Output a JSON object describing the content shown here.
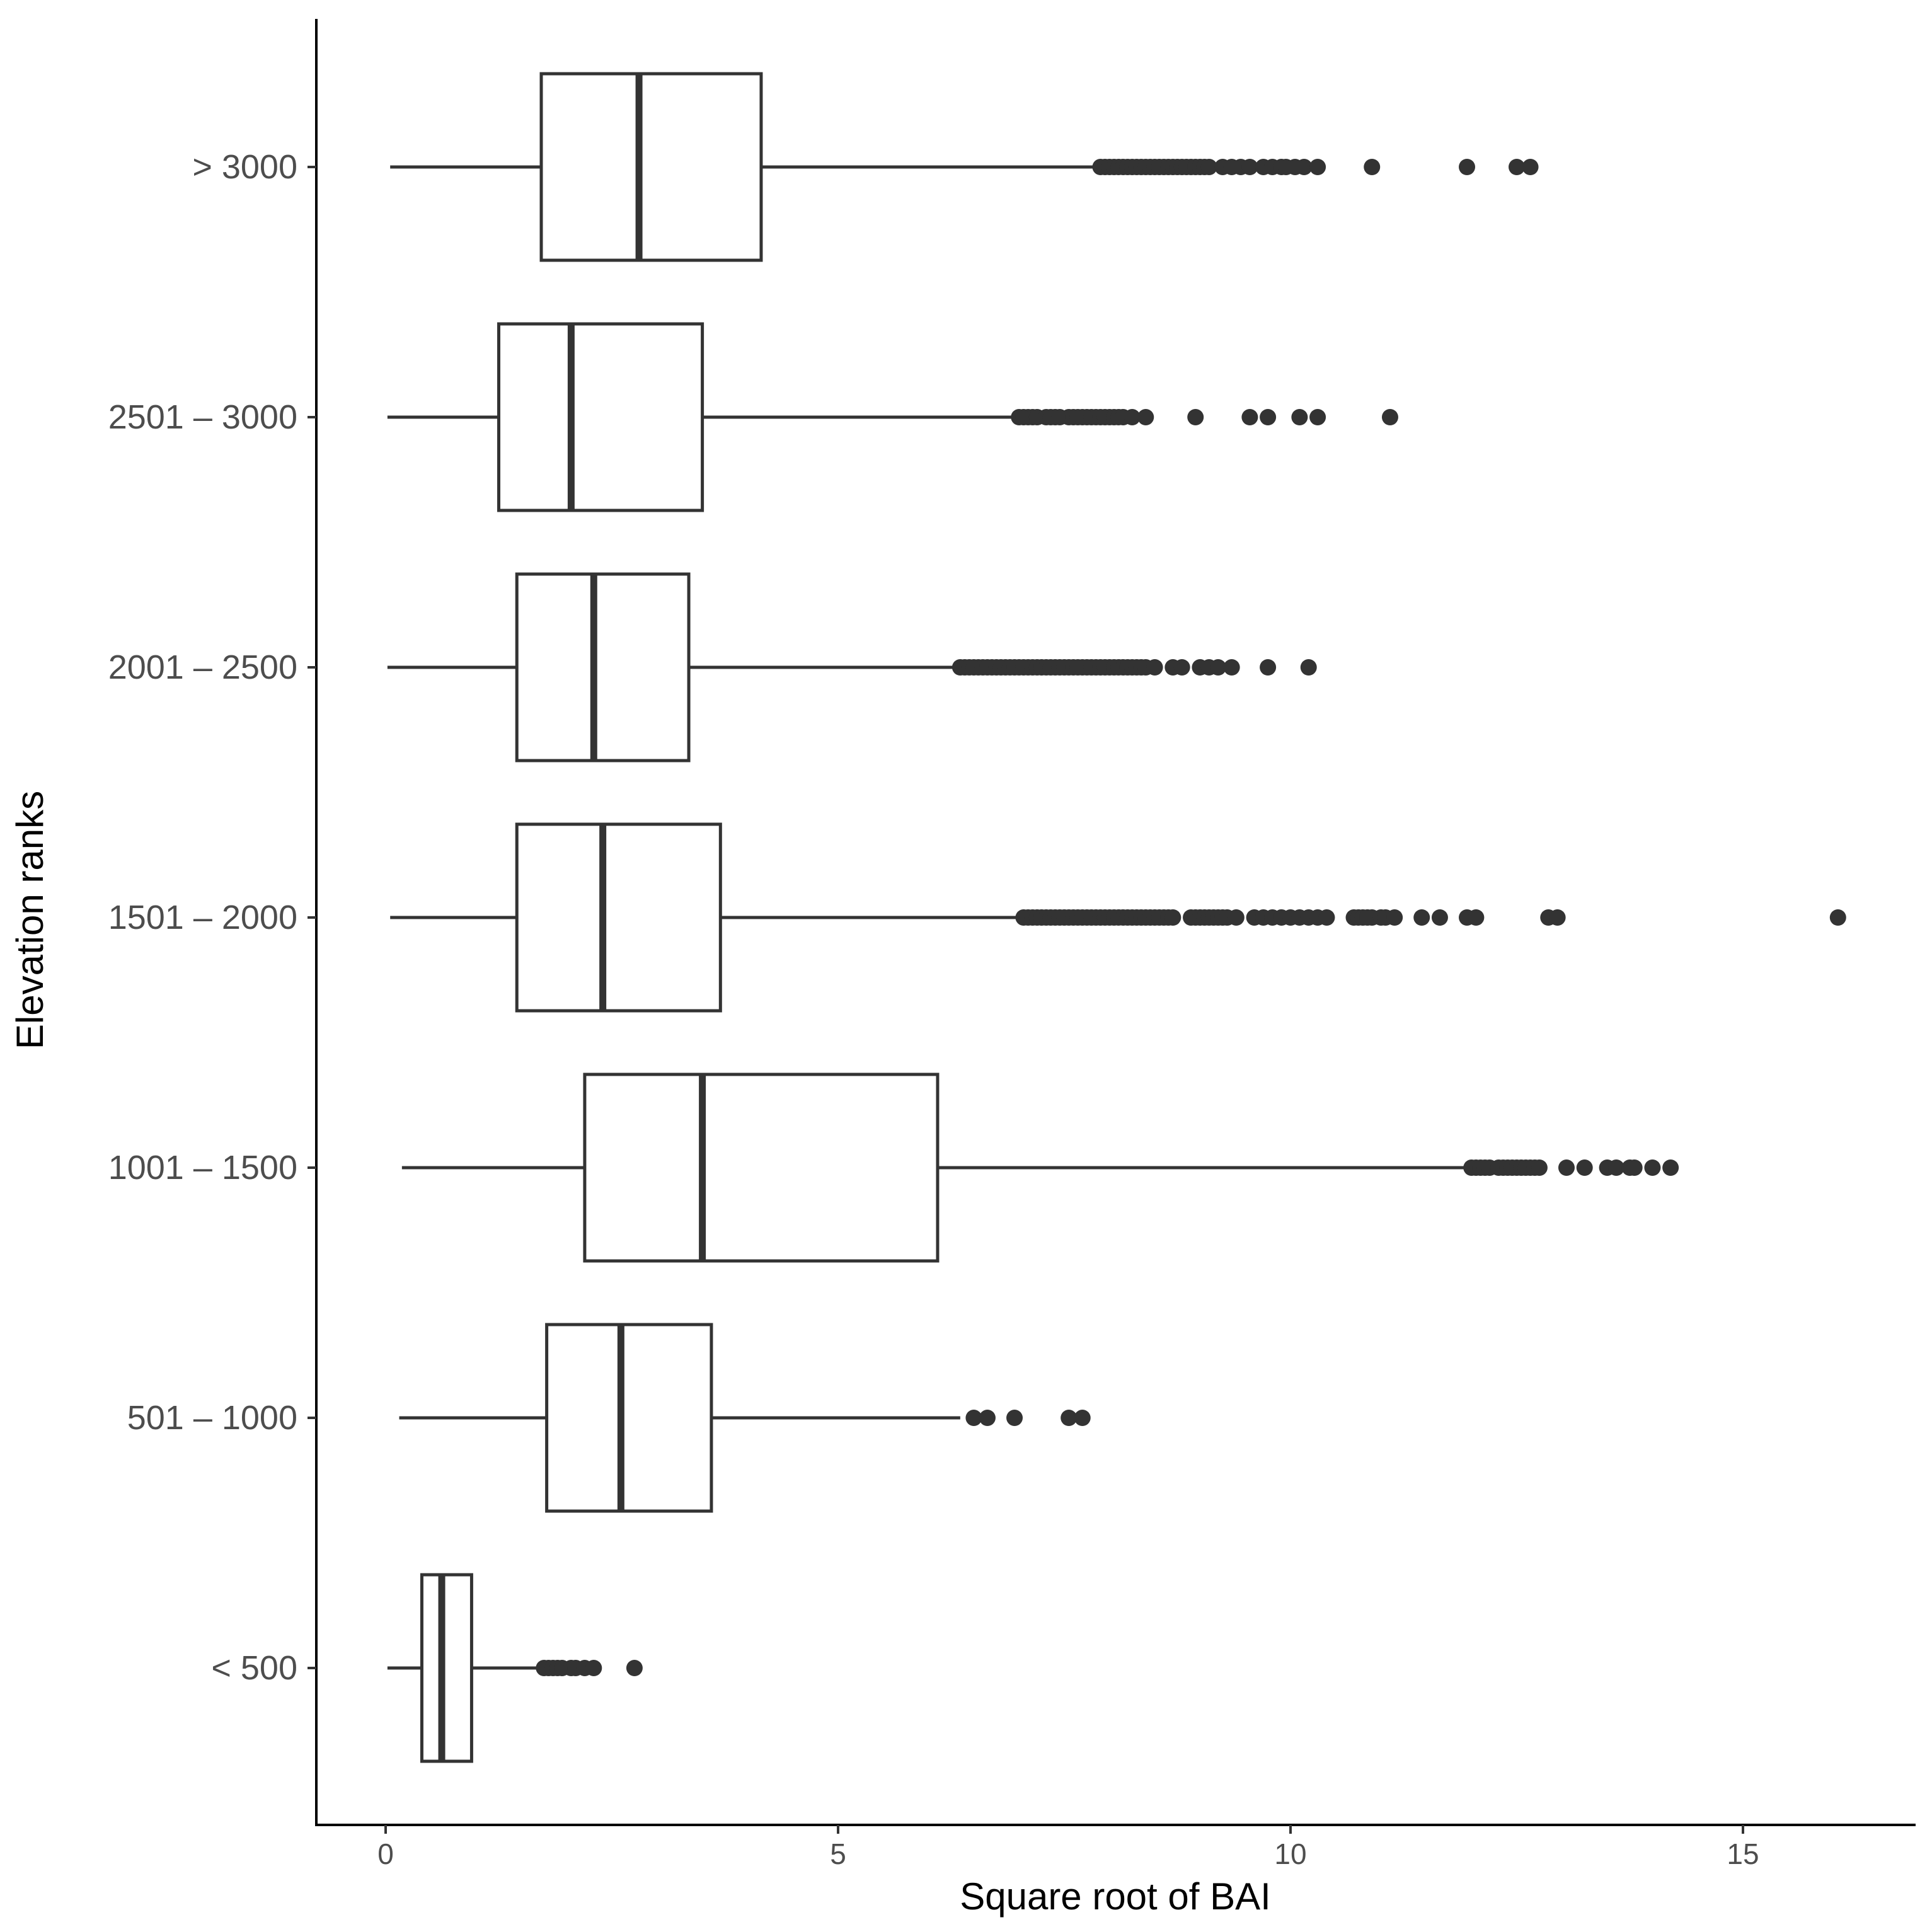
{
  "chart_data": {
    "type": "boxplot",
    "orientation": "horizontal",
    "xlabel": "Square root of BAI",
    "ylabel": "Elevation ranks",
    "xlim": [
      -0.8,
      16.8
    ],
    "xticks": [
      0,
      5,
      10,
      15
    ],
    "xtick_labels": [
      "0",
      "5",
      "10",
      "15"
    ],
    "grid": false,
    "colors": {
      "box_line": "#333333",
      "box_fill": "#ffffff",
      "outlier": "#333333",
      "axis": "#000000"
    },
    "categories": [
      "< 500",
      "501 – 1000",
      "1001 – 1500",
      "1501 – 2000",
      "2001 – 2500",
      "2501 – 3000",
      "> 3000"
    ],
    "boxes": [
      {
        "category": "< 500",
        "whisker_low": 0.02,
        "q1": 0.4,
        "median": 0.62,
        "q3": 0.95,
        "whisker_high": 1.7,
        "outliers": [
          1.75,
          1.8,
          1.85,
          1.9,
          1.95,
          2.05,
          2.1,
          2.2,
          2.3,
          2.75
        ]
      },
      {
        "category": "501 – 1000",
        "whisker_low": 0.15,
        "q1": 1.78,
        "median": 2.6,
        "q3": 3.6,
        "whisker_high": 6.35,
        "outliers": [
          6.5,
          6.65,
          6.95,
          7.55,
          7.7
        ]
      },
      {
        "category": "1001 – 1500",
        "whisker_low": 0.18,
        "q1": 2.2,
        "median": 3.5,
        "q3": 6.1,
        "whisker_high": 11.95,
        "outliers": [
          12.0,
          12.05,
          12.1,
          12.15,
          12.2,
          12.3,
          12.35,
          12.4,
          12.45,
          12.5,
          12.55,
          12.6,
          12.65,
          12.7,
          12.75,
          13.05,
          13.25,
          13.5,
          13.6,
          13.75,
          13.8,
          14.0,
          14.2
        ]
      },
      {
        "category": "1501 – 2000",
        "whisker_low": 0.05,
        "q1": 1.45,
        "median": 2.4,
        "q3": 3.7,
        "whisker_high": 7.0,
        "outliers": [
          7.05,
          7.1,
          7.15,
          7.2,
          7.25,
          7.3,
          7.35,
          7.4,
          7.45,
          7.5,
          7.55,
          7.6,
          7.65,
          7.7,
          7.75,
          7.8,
          7.85,
          7.9,
          7.95,
          8.0,
          8.05,
          8.1,
          8.15,
          8.2,
          8.25,
          8.3,
          8.35,
          8.4,
          8.45,
          8.5,
          8.55,
          8.6,
          8.65,
          8.7,
          8.9,
          8.95,
          9.0,
          9.05,
          9.1,
          9.15,
          9.2,
          9.25,
          9.3,
          9.4,
          9.6,
          9.7,
          9.8,
          9.9,
          10.0,
          10.1,
          10.2,
          10.3,
          10.4,
          10.7,
          10.75,
          10.8,
          10.85,
          10.9,
          11.0,
          11.05,
          11.15,
          11.45,
          11.65,
          11.95,
          12.05,
          12.85,
          12.95,
          16.05
        ]
      },
      {
        "category": "2001 – 2500",
        "whisker_low": 0.02,
        "q1": 1.45,
        "median": 2.3,
        "q3": 3.35,
        "whisker_high": 6.3,
        "outliers": [
          6.35,
          6.4,
          6.45,
          6.5,
          6.55,
          6.6,
          6.65,
          6.7,
          6.75,
          6.8,
          6.85,
          6.9,
          6.95,
          7.0,
          7.05,
          7.1,
          7.15,
          7.2,
          7.25,
          7.3,
          7.35,
          7.4,
          7.45,
          7.5,
          7.55,
          7.6,
          7.65,
          7.7,
          7.75,
          7.8,
          7.85,
          7.9,
          7.95,
          8.0,
          8.05,
          8.1,
          8.15,
          8.2,
          8.25,
          8.3,
          8.35,
          8.4,
          8.5,
          8.7,
          8.8,
          9.0,
          9.1,
          9.2,
          9.35,
          9.75,
          10.2
        ]
      },
      {
        "category": "2501 – 3000",
        "whisker_low": 0.02,
        "q1": 1.25,
        "median": 2.05,
        "q3": 3.5,
        "whisker_high": 6.95,
        "outliers": [
          7.0,
          7.05,
          7.1,
          7.15,
          7.2,
          7.3,
          7.35,
          7.4,
          7.45,
          7.55,
          7.6,
          7.65,
          7.7,
          7.75,
          7.8,
          7.85,
          7.9,
          7.95,
          8.0,
          8.05,
          8.1,
          8.15,
          8.25,
          8.4,
          8.95,
          9.55,
          9.75,
          10.1,
          10.3,
          11.1
        ]
      },
      {
        "category": "> 3000",
        "whisker_low": 0.05,
        "q1": 1.72,
        "median": 2.8,
        "q3": 4.15,
        "whisker_high": 7.85,
        "outliers": [
          7.9,
          7.95,
          8.0,
          8.05,
          8.1,
          8.15,
          8.2,
          8.25,
          8.3,
          8.35,
          8.4,
          8.45,
          8.5,
          8.55,
          8.6,
          8.65,
          8.7,
          8.75,
          8.8,
          8.85,
          8.9,
          8.95,
          9.0,
          9.05,
          9.1,
          9.25,
          9.35,
          9.45,
          9.55,
          9.7,
          9.8,
          9.9,
          9.95,
          10.05,
          10.15,
          10.3,
          10.9,
          11.95,
          12.5,
          12.65
        ]
      }
    ]
  }
}
